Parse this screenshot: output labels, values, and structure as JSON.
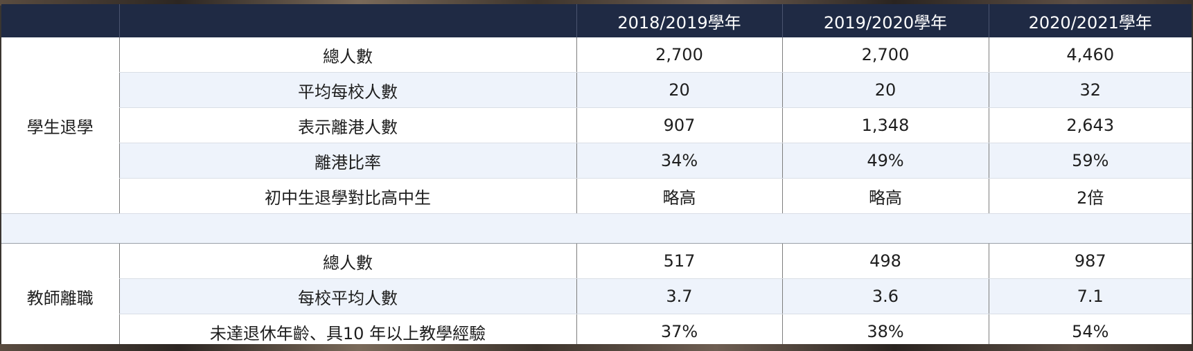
{
  "header": {
    "col_blank_1": "",
    "col_blank_2": "",
    "year_1": "2018/2019學年",
    "year_2": "2019/2020學年",
    "year_3": "2020/2021學年"
  },
  "students": {
    "group_label": "學生退學",
    "rows": [
      {
        "label": "總人數",
        "v1": "2,700",
        "v2": "2,700",
        "v3": "4,460"
      },
      {
        "label": "平均每校人數",
        "v1": "20",
        "v2": "20",
        "v3": "32"
      },
      {
        "label": "表示離港人數",
        "v1": "907",
        "v2": "1,348",
        "v3": "2,643"
      },
      {
        "label": "離港比率",
        "v1": "34%",
        "v2": "49%",
        "v3": "59%"
      },
      {
        "label": "初中生退學對比高中生",
        "v1": "略高",
        "v2": "略高",
        "v3": "2倍"
      }
    ]
  },
  "teachers": {
    "group_label": "教師離職",
    "rows": [
      {
        "label": "總人數",
        "v1": "517",
        "v2": "498",
        "v3": "987"
      },
      {
        "label": "每校平均人數",
        "v1": "3.7",
        "v2": "3.6",
        "v3": "7.1"
      },
      {
        "label": "未達退休年齡、具10 年以上教學經驗",
        "v1": "37%",
        "v2": "38%",
        "v3": "54%"
      }
    ]
  }
}
